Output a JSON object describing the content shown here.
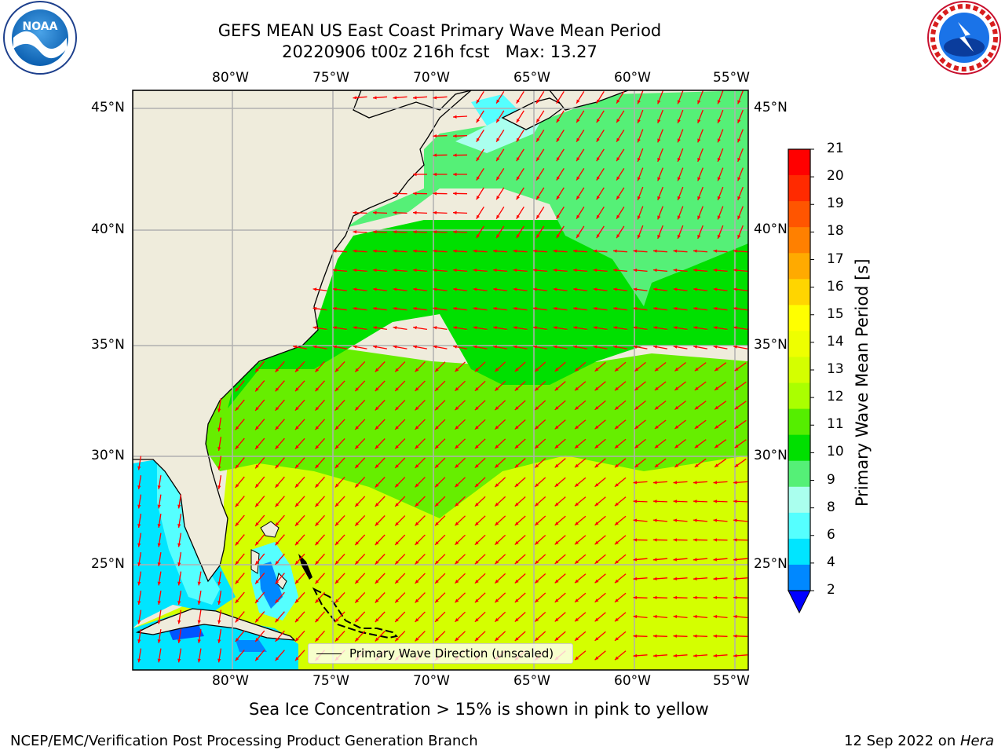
{
  "title_line1": "GEFS MEAN US East Coast Primary Wave Mean Period",
  "title_line2": "20220906 t00z 216h fcst   Max: 13.27",
  "subtitle": "Sea Ice Concentration > 15% is shown in pink to yellow",
  "footer_left": "NCEP/EMC/Verification Post Processing Product Generation Branch",
  "footer_right_date": "12 Sep 2022 on ",
  "footer_right_host": "Hera",
  "logos": {
    "left": "noaa-logo",
    "right": "nws-logo"
  },
  "map": {
    "lon_labels": [
      "80°W",
      "75°W",
      "70°W",
      "65°W",
      "60°W",
      "55°W"
    ],
    "lat_labels": [
      "45°N",
      "40°N",
      "35°N",
      "30°N",
      "25°N"
    ],
    "land_color": "#efecdc",
    "arrow_color": "#ff0000"
  },
  "legend": {
    "label": "Primary Wave Direction (unscaled)"
  },
  "colorbar": {
    "title": "Primary Wave Mean Period [s]",
    "ticks": [
      "21",
      "20",
      "19",
      "18",
      "17",
      "16",
      "15",
      "14",
      "13",
      "12",
      "11",
      "10",
      "9",
      "8",
      "6",
      "4",
      "2"
    ],
    "colors": [
      "#ff0000",
      "#ff2a00",
      "#ff5500",
      "#ff8000",
      "#ffaa00",
      "#ffd500",
      "#ffff00",
      "#eeff00",
      "#d4ff00",
      "#aaff00",
      "#55ee00",
      "#00e000",
      "#55f077",
      "#aaffee",
      "#55ffff",
      "#00e5ff",
      "#0088ff"
    ],
    "extend_color": "#0000ff"
  }
}
